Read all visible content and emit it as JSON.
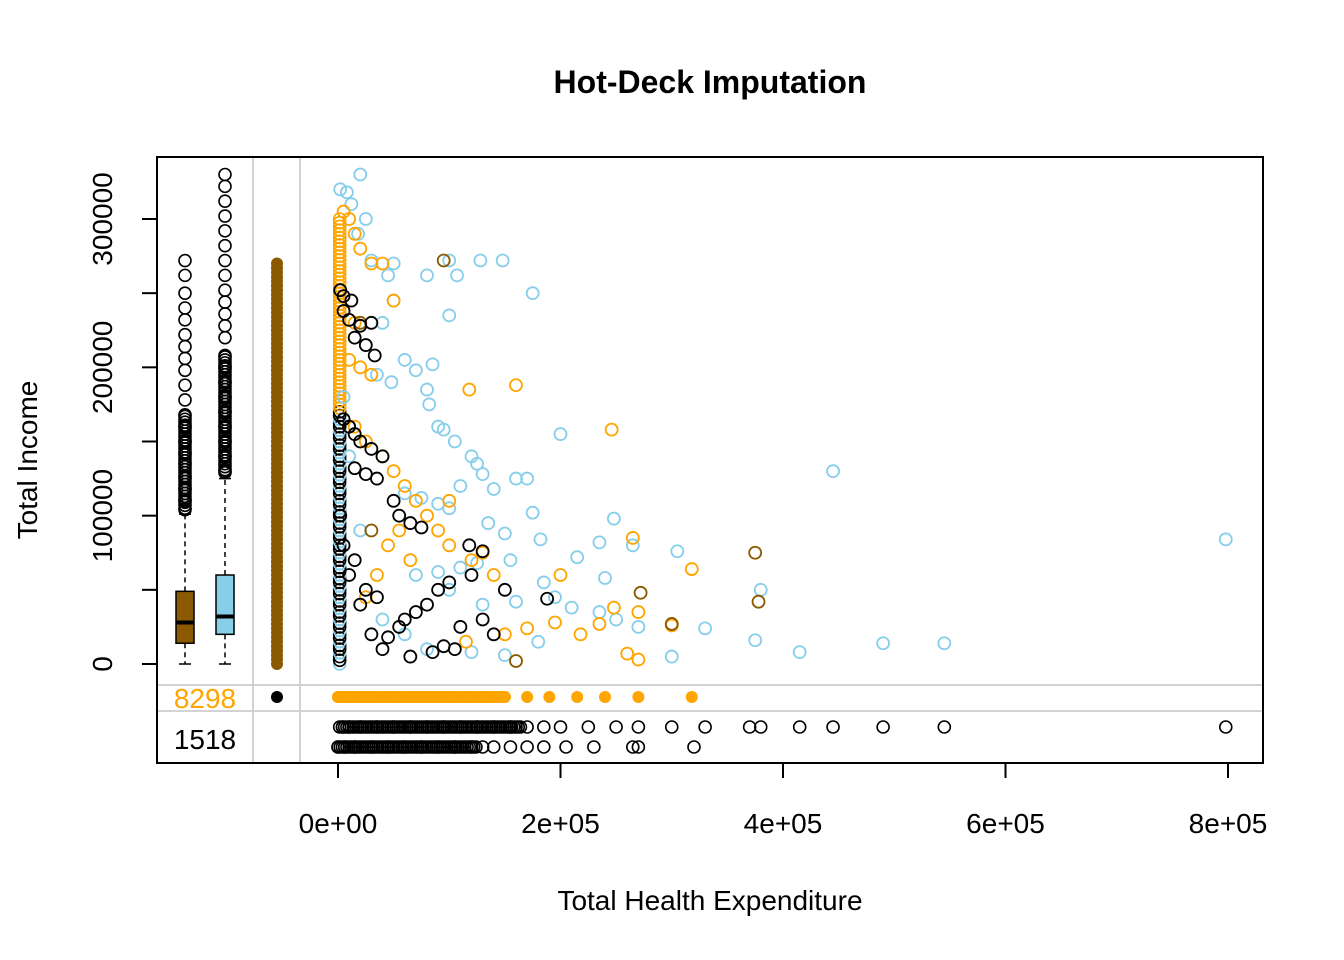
{
  "chart_data": {
    "type": "scatter",
    "title": "Hot-Deck Imputation",
    "xlabel": "Total Health Expenditure",
    "ylabel": "Total Income",
    "xlim": [
      -82000,
      830000
    ],
    "ylim": [
      0,
      330000
    ],
    "x_ticks": [
      0,
      200000,
      400000,
      600000,
      800000
    ],
    "x_tick_labels": [
      "0e+00",
      "2e+05",
      "4e+05",
      "6e+05",
      "8e+05"
    ],
    "y_ticks": [
      0,
      100000,
      200000,
      300000
    ],
    "y_tick_labels": [
      "0",
      "100000",
      "200000",
      "300000"
    ],
    "colors": {
      "observed": "#87ceeb",
      "imputed": "#ffa500",
      "imputed_dark": "#8b5a00",
      "missing_marker": "#000000",
      "grid": "#d3d3d3"
    },
    "missing_counts": {
      "income_missing": "8298",
      "expenditure_missing": "1518"
    },
    "boxplots": [
      {
        "name": "imputed",
        "color": "#8b5a00",
        "q1": 14000,
        "median": 28000,
        "q3": 49000,
        "whisker_low": 0,
        "whisker_high": 101000,
        "outliers": [
          104000,
          110000,
          118000,
          126000,
          135000,
          142000,
          150000,
          160000,
          168000,
          178000,
          188000,
          198000,
          206000,
          214000,
          222000,
          232000,
          240000,
          250000,
          262000,
          272000
        ]
      },
      {
        "name": "observed",
        "color": "#87ceeb",
        "q1": 20000,
        "median": 32000,
        "q3": 60000,
        "whisker_low": 0,
        "whisker_high": 125000,
        "outliers": [
          130000,
          140000,
          150000,
          160000,
          170000,
          180000,
          190000,
          200000,
          208000,
          220000,
          228000,
          236000,
          244000,
          252000,
          262000,
          272000,
          282000,
          292000,
          302000,
          312000,
          322000,
          330000
        ]
      }
    ],
    "observed_points": [
      [
        20000,
        330000
      ],
      [
        2000,
        320000
      ],
      [
        8000,
        318000
      ],
      [
        12000,
        310000
      ],
      [
        25000,
        300000
      ],
      [
        18000,
        290000
      ],
      [
        30000,
        272000
      ],
      [
        50000,
        270000
      ],
      [
        100000,
        272000
      ],
      [
        128000,
        272000
      ],
      [
        148000,
        272000
      ],
      [
        45000,
        262000
      ],
      [
        80000,
        262000
      ],
      [
        107000,
        262000
      ],
      [
        175000,
        250000
      ],
      [
        50000,
        245000
      ],
      [
        100000,
        235000
      ],
      [
        40000,
        230000
      ],
      [
        60000,
        205000
      ],
      [
        70000,
        198000
      ],
      [
        85000,
        202000
      ],
      [
        35000,
        195000
      ],
      [
        48000,
        190000
      ],
      [
        80000,
        185000
      ],
      [
        82000,
        175000
      ],
      [
        90000,
        160000
      ],
      [
        95000,
        158000
      ],
      [
        105000,
        150000
      ],
      [
        120000,
        140000
      ],
      [
        125000,
        135000
      ],
      [
        130000,
        128000
      ],
      [
        160000,
        125000
      ],
      [
        170000,
        125000
      ],
      [
        110000,
        120000
      ],
      [
        140000,
        118000
      ],
      [
        60000,
        115000
      ],
      [
        75000,
        112000
      ],
      [
        90000,
        108000
      ],
      [
        100000,
        105000
      ],
      [
        200000,
        155000
      ],
      [
        445000,
        130000
      ],
      [
        175000,
        102000
      ],
      [
        248000,
        98000
      ],
      [
        135000,
        95000
      ],
      [
        150000,
        88000
      ],
      [
        182000,
        84000
      ],
      [
        235000,
        82000
      ],
      [
        265000,
        80000
      ],
      [
        305000,
        76000
      ],
      [
        215000,
        72000
      ],
      [
        155000,
        70000
      ],
      [
        125000,
        68000
      ],
      [
        110000,
        65000
      ],
      [
        90000,
        62000
      ],
      [
        70000,
        60000
      ],
      [
        240000,
        58000
      ],
      [
        185000,
        55000
      ],
      [
        380000,
        50000
      ],
      [
        195000,
        45000
      ],
      [
        160000,
        42000
      ],
      [
        130000,
        40000
      ],
      [
        210000,
        38000
      ],
      [
        235000,
        35000
      ],
      [
        330000,
        24000
      ],
      [
        375000,
        16000
      ],
      [
        490000,
        14000
      ],
      [
        545000,
        14000
      ],
      [
        415000,
        8000
      ],
      [
        300000,
        5000
      ],
      [
        150000,
        6000
      ],
      [
        120000,
        8000
      ],
      [
        80000,
        10000
      ],
      [
        60000,
        20000
      ],
      [
        40000,
        30000
      ],
      [
        20000,
        90000
      ],
      [
        10000,
        140000
      ],
      [
        5000,
        180000
      ],
      [
        798000,
        84000
      ],
      [
        270000,
        25000
      ],
      [
        180000,
        15000
      ],
      [
        250000,
        30000
      ],
      [
        100000,
        50000
      ]
    ],
    "imputed_points": [
      [
        5000,
        305000
      ],
      [
        10000,
        300000
      ],
      [
        15000,
        290000
      ],
      [
        20000,
        280000
      ],
      [
        30000,
        270000
      ],
      [
        40000,
        270000
      ],
      [
        50000,
        245000
      ],
      [
        15000,
        230000
      ],
      [
        10000,
        205000
      ],
      [
        20000,
        200000
      ],
      [
        30000,
        195000
      ],
      [
        118000,
        185000
      ],
      [
        160000,
        188000
      ],
      [
        246000,
        158000
      ],
      [
        15000,
        160000
      ],
      [
        25000,
        150000
      ],
      [
        40000,
        140000
      ],
      [
        50000,
        130000
      ],
      [
        60000,
        120000
      ],
      [
        70000,
        110000
      ],
      [
        80000,
        100000
      ],
      [
        90000,
        90000
      ],
      [
        100000,
        80000
      ],
      [
        120000,
        70000
      ],
      [
        140000,
        60000
      ],
      [
        100000,
        110000
      ],
      [
        130000,
        75000
      ],
      [
        265000,
        85000
      ],
      [
        318000,
        64000
      ],
      [
        200000,
        60000
      ],
      [
        248000,
        38000
      ],
      [
        270000,
        35000
      ],
      [
        300000,
        26000
      ],
      [
        235000,
        27000
      ],
      [
        218000,
        20000
      ],
      [
        195000,
        28000
      ],
      [
        170000,
        24000
      ],
      [
        150000,
        20000
      ],
      [
        115000,
        15000
      ],
      [
        270000,
        3000
      ],
      [
        260000,
        7000
      ],
      [
        25000,
        45000
      ],
      [
        35000,
        60000
      ],
      [
        45000,
        80000
      ],
      [
        55000,
        90000
      ],
      [
        65000,
        70000
      ]
    ],
    "imputed_dark_points": [
      [
        95000,
        272000
      ],
      [
        375000,
        75000
      ],
      [
        272000,
        48000
      ],
      [
        378000,
        42000
      ],
      [
        300000,
        27000
      ],
      [
        160000,
        2000
      ],
      [
        20000,
        230000
      ],
      [
        10000,
        160000
      ],
      [
        30000,
        90000
      ]
    ],
    "missing_points": [
      [
        2000,
        252000
      ],
      [
        5000,
        248000
      ],
      [
        12000,
        245000
      ],
      [
        5000,
        238000
      ],
      [
        10000,
        232000
      ],
      [
        20000,
        228000
      ],
      [
        30000,
        230000
      ],
      [
        15000,
        220000
      ],
      [
        25000,
        215000
      ],
      [
        33000,
        208000
      ],
      [
        5000,
        165000
      ],
      [
        10000,
        160000
      ],
      [
        15000,
        155000
      ],
      [
        20000,
        150000
      ],
      [
        30000,
        145000
      ],
      [
        40000,
        140000
      ],
      [
        15000,
        132000
      ],
      [
        25000,
        128000
      ],
      [
        35000,
        125000
      ],
      [
        50000,
        110000
      ],
      [
        55000,
        100000
      ],
      [
        65000,
        95000
      ],
      [
        75000,
        92000
      ],
      [
        118000,
        80000
      ],
      [
        130000,
        76000
      ],
      [
        150000,
        50000
      ],
      [
        188000,
        44000
      ],
      [
        120000,
        60000
      ],
      [
        100000,
        55000
      ],
      [
        90000,
        50000
      ],
      [
        80000,
        40000
      ],
      [
        70000,
        35000
      ],
      [
        60000,
        30000
      ],
      [
        55000,
        25000
      ],
      [
        45000,
        18000
      ],
      [
        95000,
        12000
      ],
      [
        105000,
        10000
      ],
      [
        130000,
        30000
      ],
      [
        140000,
        20000
      ],
      [
        85000,
        8000
      ],
      [
        65000,
        5000
      ],
      [
        40000,
        10000
      ],
      [
        30000,
        20000
      ],
      [
        20000,
        40000
      ],
      [
        10000,
        60000
      ],
      [
        5000,
        80000
      ],
      [
        2000,
        100000
      ],
      [
        15000,
        70000
      ],
      [
        25000,
        50000
      ],
      [
        35000,
        45000
      ],
      [
        110000,
        25000
      ]
    ],
    "income_missing_points": [
      0,
      5000,
      12000,
      20000,
      30000,
      42000,
      55000,
      70000,
      85000,
      100000,
      115000,
      130000,
      150000,
      170000,
      190000,
      215000,
      240000,
      270000,
      318000
    ],
    "exp_missing_row1": [
      1500,
      4000,
      10000,
      20000,
      35000,
      50000,
      65000,
      80000,
      95000,
      110000,
      125000,
      140000,
      155000,
      170000,
      185000,
      200000,
      225000,
      250000,
      270000,
      300000,
      330000,
      370000,
      380000,
      415000,
      445000,
      490000,
      545000,
      798000
    ],
    "exp_missing_row2": [
      0,
      6000,
      15000,
      30000,
      45000,
      60000,
      75000,
      90000,
      105000,
      120000,
      130000,
      140000,
      155000,
      170000,
      185000,
      205000,
      230000,
      265000,
      270000,
      320000
    ]
  }
}
